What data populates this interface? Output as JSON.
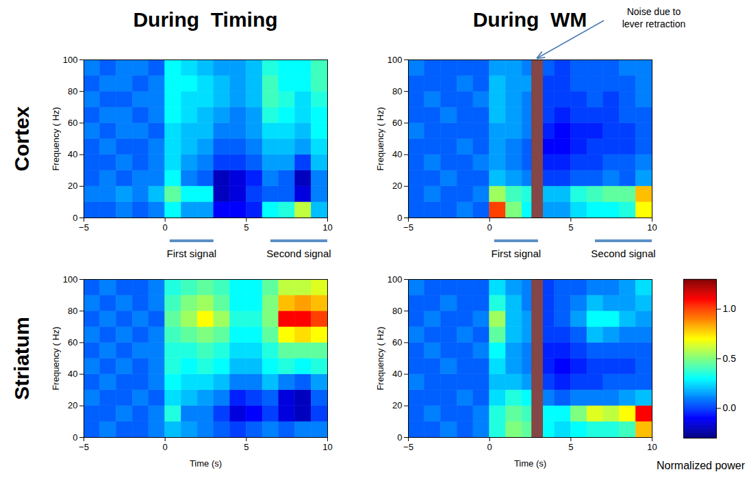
{
  "chart_data": {
    "type": "heatmap",
    "columns": [
      "During  Timing",
      "During  WM"
    ],
    "rows": [
      "Cortex",
      "Striatum"
    ],
    "x_label": "Time (s)",
    "y_label": "Frequency ( Hz)",
    "xlim": [
      -5,
      10
    ],
    "xticks": [
      -5,
      0,
      5,
      10
    ],
    "ylim": [
      0,
      100
    ],
    "yticks": [
      0,
      20,
      40,
      60,
      80,
      100
    ],
    "x_edges": [
      -5,
      -4,
      -3,
      -2,
      -1,
      0,
      1,
      2,
      3,
      4,
      5,
      6,
      7,
      8,
      9,
      10
    ],
    "y_edges": [
      0,
      10,
      20,
      30,
      40,
      50,
      60,
      70,
      80,
      90,
      100
    ],
    "panels": [
      {
        "row": "Cortex",
        "column": "During  Timing",
        "cells": [
          [
            0.05,
            0.05,
            0.1,
            0.05,
            0.1,
            0.3,
            0.15,
            0.15,
            -0.1,
            -0.1,
            -0.05,
            0.3,
            0.35,
            0.6,
            0.2
          ],
          [
            0.1,
            0.1,
            0.15,
            0.1,
            0.2,
            0.45,
            0.3,
            0.3,
            -0.2,
            -0.15,
            0.0,
            0.05,
            0.05,
            -0.15,
            0.1
          ],
          [
            0.05,
            0.1,
            0.05,
            0.1,
            0.1,
            0.3,
            0.1,
            0.05,
            -0.2,
            -0.15,
            -0.05,
            0.1,
            0.05,
            -0.2,
            0.1
          ],
          [
            0.05,
            0.05,
            0.1,
            0.05,
            0.1,
            0.25,
            0.15,
            0.1,
            0.0,
            0.0,
            0.05,
            0.15,
            0.15,
            0.0,
            0.2
          ],
          [
            0.05,
            0.1,
            0.05,
            0.05,
            0.1,
            0.25,
            0.2,
            0.15,
            0.05,
            0.05,
            0.1,
            0.2,
            0.2,
            0.15,
            0.25
          ],
          [
            0.1,
            0.05,
            0.1,
            0.1,
            0.05,
            0.25,
            0.2,
            0.2,
            0.1,
            0.1,
            0.15,
            0.25,
            0.25,
            0.2,
            0.3
          ],
          [
            0.05,
            0.1,
            0.1,
            0.05,
            0.1,
            0.3,
            0.25,
            0.2,
            0.15,
            0.1,
            0.15,
            0.35,
            0.3,
            0.25,
            0.3
          ],
          [
            0.1,
            0.05,
            0.05,
            0.1,
            0.1,
            0.3,
            0.25,
            0.25,
            0.2,
            0.15,
            0.2,
            0.4,
            0.35,
            0.25,
            0.35
          ],
          [
            0.05,
            0.1,
            0.1,
            0.05,
            0.1,
            0.3,
            0.3,
            0.25,
            0.2,
            0.15,
            0.2,
            0.4,
            0.3,
            0.3,
            0.4
          ],
          [
            0.1,
            0.05,
            0.1,
            0.1,
            0.05,
            0.3,
            0.25,
            0.2,
            0.15,
            0.15,
            0.2,
            0.35,
            0.3,
            0.3,
            0.4
          ]
        ]
      },
      {
        "row": "Cortex",
        "column": "During  WM",
        "cells": [
          [
            0.05,
            0.05,
            0.05,
            0.1,
            0.05,
            1.0,
            0.5,
            0.3,
            0.15,
            0.15,
            0.25,
            0.3,
            0.3,
            0.35,
            0.7
          ],
          [
            0.05,
            0.1,
            0.05,
            0.05,
            0.1,
            0.55,
            0.4,
            0.35,
            0.2,
            0.2,
            0.35,
            0.4,
            0.45,
            0.45,
            0.8
          ],
          [
            0.05,
            0.05,
            0.1,
            0.05,
            0.05,
            0.2,
            0.15,
            0.1,
            0.0,
            0.0,
            0.05,
            0.05,
            0.1,
            0.05,
            0.15
          ],
          [
            0.05,
            0.1,
            0.05,
            0.05,
            0.1,
            0.15,
            0.1,
            0.05,
            -0.05,
            -0.05,
            0.0,
            0.0,
            0.05,
            0.05,
            0.1
          ],
          [
            0.05,
            0.05,
            0.05,
            0.1,
            0.05,
            0.15,
            0.1,
            0.05,
            -0.1,
            -0.1,
            -0.05,
            0.0,
            0.0,
            0.0,
            0.05
          ],
          [
            0.1,
            0.05,
            0.05,
            0.05,
            0.05,
            0.15,
            0.15,
            0.1,
            -0.05,
            -0.1,
            -0.05,
            -0.05,
            0.0,
            0.0,
            0.05
          ],
          [
            0.05,
            0.05,
            0.1,
            0.05,
            0.05,
            0.2,
            0.15,
            0.1,
            0.0,
            -0.05,
            0.0,
            0.0,
            0.0,
            0.05,
            0.05
          ],
          [
            0.05,
            0.1,
            0.05,
            0.05,
            0.1,
            0.2,
            0.15,
            0.1,
            0.0,
            0.0,
            0.0,
            0.05,
            0.0,
            0.05,
            0.1
          ],
          [
            0.05,
            0.05,
            0.05,
            0.1,
            0.05,
            0.2,
            0.15,
            0.15,
            0.0,
            0.0,
            0.05,
            0.05,
            0.05,
            0.05,
            0.1
          ],
          [
            0.1,
            0.05,
            0.05,
            0.05,
            0.05,
            0.15,
            0.15,
            0.1,
            0.05,
            0.0,
            0.05,
            0.05,
            0.05,
            0.1,
            0.1
          ]
        ]
      },
      {
        "row": "Striatum",
        "column": "During  Timing",
        "cells": [
          [
            0.05,
            0.1,
            0.05,
            0.05,
            0.1,
            0.2,
            0.15,
            0.1,
            0.05,
            0.0,
            0.05,
            0.1,
            0.05,
            0.1,
            0.1
          ],
          [
            0.05,
            0.05,
            0.1,
            0.05,
            0.1,
            0.35,
            0.1,
            0.1,
            0.0,
            -0.15,
            -0.1,
            0.0,
            -0.15,
            -0.2,
            0.0
          ],
          [
            0.1,
            0.05,
            0.05,
            0.1,
            0.05,
            0.25,
            0.2,
            0.15,
            0.1,
            -0.05,
            0.0,
            0.05,
            -0.15,
            -0.2,
            0.05
          ],
          [
            0.05,
            0.1,
            0.05,
            0.05,
            0.1,
            0.3,
            0.25,
            0.25,
            0.2,
            0.1,
            0.1,
            0.2,
            0.1,
            0.05,
            0.15
          ],
          [
            0.1,
            0.05,
            0.1,
            0.05,
            0.1,
            0.35,
            0.3,
            0.35,
            0.3,
            0.2,
            0.2,
            0.3,
            0.35,
            0.3,
            0.35
          ],
          [
            0.05,
            0.1,
            0.05,
            0.1,
            0.1,
            0.35,
            0.35,
            0.4,
            0.35,
            0.25,
            0.25,
            0.35,
            0.45,
            0.45,
            0.45
          ],
          [
            0.1,
            0.05,
            0.1,
            0.05,
            0.1,
            0.4,
            0.45,
            0.5,
            0.45,
            0.3,
            0.3,
            0.45,
            0.7,
            0.75,
            0.7
          ],
          [
            0.05,
            0.1,
            0.05,
            0.1,
            0.05,
            0.45,
            0.55,
            0.7,
            0.55,
            0.35,
            0.35,
            0.5,
            1.1,
            1.1,
            1.0
          ],
          [
            0.1,
            0.05,
            0.1,
            0.05,
            0.1,
            0.4,
            0.5,
            0.55,
            0.45,
            0.3,
            0.3,
            0.5,
            0.8,
            0.85,
            0.8
          ],
          [
            0.05,
            0.1,
            0.05,
            0.05,
            0.1,
            0.35,
            0.4,
            0.45,
            0.4,
            0.3,
            0.3,
            0.45,
            0.6,
            0.6,
            0.65
          ]
        ]
      },
      {
        "row": "Striatum",
        "column": "During  WM",
        "cells": [
          [
            0.05,
            0.05,
            0.1,
            0.05,
            0.1,
            0.35,
            0.5,
            0.45,
            0.3,
            0.25,
            0.3,
            0.35,
            0.35,
            0.4,
            0.8
          ],
          [
            0.05,
            0.1,
            0.05,
            0.05,
            0.1,
            0.35,
            0.45,
            0.4,
            0.3,
            0.3,
            0.5,
            0.65,
            0.6,
            0.7,
            1.1
          ],
          [
            0.05,
            0.05,
            0.05,
            0.1,
            0.05,
            0.25,
            0.35,
            0.3,
            0.1,
            0.05,
            0.1,
            0.1,
            0.1,
            0.15,
            0.2
          ],
          [
            0.1,
            0.05,
            0.05,
            0.05,
            0.05,
            0.2,
            0.2,
            0.15,
            0.0,
            -0.05,
            0.0,
            0.0,
            0.05,
            0.05,
            0.05
          ],
          [
            0.05,
            0.05,
            0.1,
            0.05,
            0.05,
            0.25,
            0.15,
            0.1,
            -0.05,
            -0.1,
            -0.05,
            0.0,
            0.0,
            0.0,
            0.05
          ],
          [
            0.05,
            0.1,
            0.05,
            0.05,
            0.1,
            0.3,
            0.15,
            0.1,
            -0.05,
            -0.05,
            0.0,
            0.05,
            0.05,
            0.05,
            0.05
          ],
          [
            0.1,
            0.05,
            0.05,
            0.1,
            0.05,
            0.45,
            0.2,
            0.15,
            0.0,
            0.0,
            0.05,
            0.2,
            0.15,
            0.1,
            0.1
          ],
          [
            0.05,
            0.1,
            0.05,
            0.05,
            0.1,
            0.55,
            0.2,
            0.15,
            0.0,
            0.05,
            0.15,
            0.3,
            0.3,
            0.2,
            0.15
          ],
          [
            0.05,
            0.05,
            0.1,
            0.05,
            0.05,
            0.35,
            0.2,
            0.1,
            0.0,
            0.05,
            0.1,
            0.2,
            0.15,
            0.15,
            0.2
          ],
          [
            0.1,
            0.05,
            0.05,
            0.05,
            0.05,
            0.25,
            0.15,
            0.1,
            0.0,
            0.05,
            0.05,
            0.1,
            0.1,
            0.15,
            0.25
          ]
        ]
      }
    ],
    "colorbar": {
      "label": "Normalized power",
      "lim": [
        -0.3,
        1.3
      ],
      "ticks": [
        0,
        0.5,
        1
      ]
    },
    "signals": [
      {
        "label": "First signal",
        "x": [
          0.3,
          3
        ]
      },
      {
        "label": "Second signal",
        "x": [
          6.5,
          10
        ]
      }
    ],
    "annotation": {
      "text": "Noise due to lever retraction",
      "column": "During  WM",
      "x": [
        2.6,
        3.3
      ]
    }
  }
}
